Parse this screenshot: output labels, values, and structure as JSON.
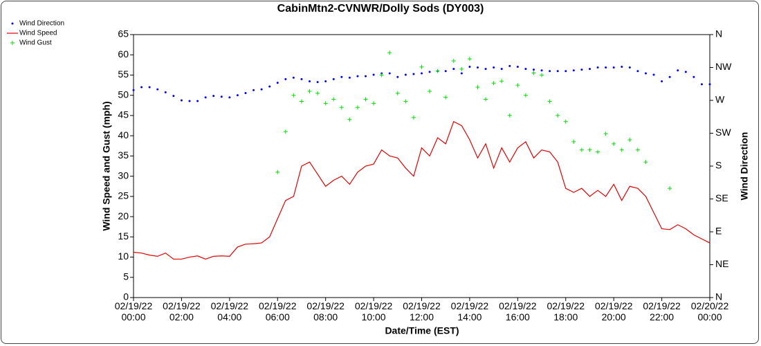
{
  "chart_data": {
    "type": "line",
    "title": "CabinMtn2-CVNWR/Dolly Sods (DY003)",
    "xlabel": "Date/Time (EST)",
    "ylabel": "Wind Speed and Gust (mph)",
    "y2label": "Wind Direction",
    "legend": "top-left",
    "grid": false,
    "x": [
      0,
      20,
      40,
      60,
      80,
      100,
      120,
      140,
      160,
      180,
      200,
      220,
      240,
      260,
      280,
      300,
      320,
      340,
      360,
      380,
      400,
      420,
      440,
      460,
      480,
      500,
      520,
      540,
      560,
      580,
      600,
      620,
      640,
      660,
      680,
      700,
      720,
      740,
      760,
      780,
      800,
      820,
      840,
      860,
      880,
      900,
      920,
      940,
      960,
      980,
      1000,
      1020,
      1040,
      1060,
      1080,
      1100,
      1120,
      1140,
      1160,
      1180,
      1200,
      1220,
      1240,
      1260,
      1280,
      1300,
      1320,
      1340,
      1360,
      1380,
      1400,
      1420,
      1440
    ],
    "xlim": [
      0,
      1440
    ],
    "xticks": [
      {
        "value": 0,
        "label": "02/19/22\n00:00"
      },
      {
        "value": 120,
        "label": "02/19/22\n02:00"
      },
      {
        "value": 240,
        "label": "02/19/22\n04:00"
      },
      {
        "value": 360,
        "label": "02/19/22\n06:00"
      },
      {
        "value": 480,
        "label": "02/19/22\n08:00"
      },
      {
        "value": 600,
        "label": "02/19/22\n10:00"
      },
      {
        "value": 720,
        "label": "02/19/22\n12:00"
      },
      {
        "value": 840,
        "label": "02/19/22\n14:00"
      },
      {
        "value": 960,
        "label": "02/19/22\n16:00"
      },
      {
        "value": 1080,
        "label": "02/19/22\n18:00"
      },
      {
        "value": 1200,
        "label": "02/19/22\n20:00"
      },
      {
        "value": 1320,
        "label": "02/19/22\n22:00"
      },
      {
        "value": 1440,
        "label": "02/20/22\n00:00"
      }
    ],
    "ylim": [
      0,
      65
    ],
    "yticks": [
      0,
      5,
      10,
      15,
      20,
      25,
      30,
      35,
      40,
      45,
      50,
      55,
      60,
      65
    ],
    "y2lim": [
      0,
      360
    ],
    "y2ticks": [
      {
        "value": 0,
        "label": "N"
      },
      {
        "value": 45,
        "label": "NE"
      },
      {
        "value": 90,
        "label": "E"
      },
      {
        "value": 135,
        "label": "SE"
      },
      {
        "value": 180,
        "label": "S"
      },
      {
        "value": 225,
        "label": "SW"
      },
      {
        "value": 270,
        "label": "W"
      },
      {
        "value": 315,
        "label": "NW"
      },
      {
        "value": 360,
        "label": "N"
      }
    ],
    "series": [
      {
        "name": "Wind Direction",
        "color": "#0000ff",
        "mark": "dot",
        "axis": "y2",
        "values": [
          284,
          288,
          288,
          285,
          281,
          276,
          270,
          269,
          269,
          274,
          276,
          275,
          274,
          277,
          280,
          284,
          285,
          289,
          294,
          299,
          301,
          299,
          296,
          295,
          296,
          299,
          302,
          301,
          303,
          303,
          305,
          307,
          307,
          302,
          305,
          306,
          307,
          309,
          310,
          310,
          313,
          307,
          316,
          315,
          313,
          315,
          313,
          317,
          316,
          313,
          312,
          311,
          310,
          310,
          310,
          311,
          312,
          313,
          315,
          315,
          315,
          316,
          315,
          310,
          307,
          305,
          296,
          302,
          311,
          309,
          302,
          292,
          292
        ]
      },
      {
        "name": "Wind Speed",
        "color": "#e00000",
        "mark": "line",
        "values": [
          11.2,
          11,
          10.5,
          10.2,
          11,
          9.5,
          9.5,
          10,
          10.3,
          9.5,
          10.2,
          10.3,
          10.2,
          12.5,
          13.2,
          13.3,
          13.5,
          15,
          19.5,
          24,
          25,
          32.5,
          33.5,
          30.5,
          27.5,
          29,
          30,
          28,
          31,
          32.5,
          33,
          36.5,
          35,
          34.5,
          32,
          30,
          37,
          35,
          39.5,
          38,
          43.5,
          42.5,
          39,
          34.5,
          38,
          32,
          37,
          33.5,
          37,
          38.5,
          34.5,
          36.5,
          36,
          33.5,
          27,
          26,
          27,
          25,
          26.5,
          25,
          28,
          24,
          27.5,
          27,
          25,
          21,
          17,
          16.8,
          18,
          17,
          15.5,
          14.5,
          13.5
        ]
      },
      {
        "name": "Wind Gust",
        "color": "#00dd00",
        "mark": "plus",
        "values": [
          null,
          null,
          null,
          null,
          null,
          null,
          null,
          null,
          null,
          null,
          null,
          null,
          null,
          null,
          null,
          null,
          null,
          null,
          31,
          41,
          50,
          48.5,
          51,
          50.5,
          48,
          49,
          47,
          44,
          47,
          49,
          48,
          55,
          60.5,
          50.5,
          48.5,
          44.5,
          57,
          51,
          56,
          49.5,
          58.5,
          56.5,
          59,
          52,
          49,
          53,
          53.5,
          45,
          52.5,
          50,
          55.5,
          55,
          48.5,
          45,
          43.5,
          38.5,
          36.5,
          36.5,
          36,
          40.5,
          38,
          36.5,
          39,
          36.5,
          33.5,
          null,
          null,
          27,
          null,
          null,
          null,
          null,
          null
        ]
      }
    ]
  }
}
